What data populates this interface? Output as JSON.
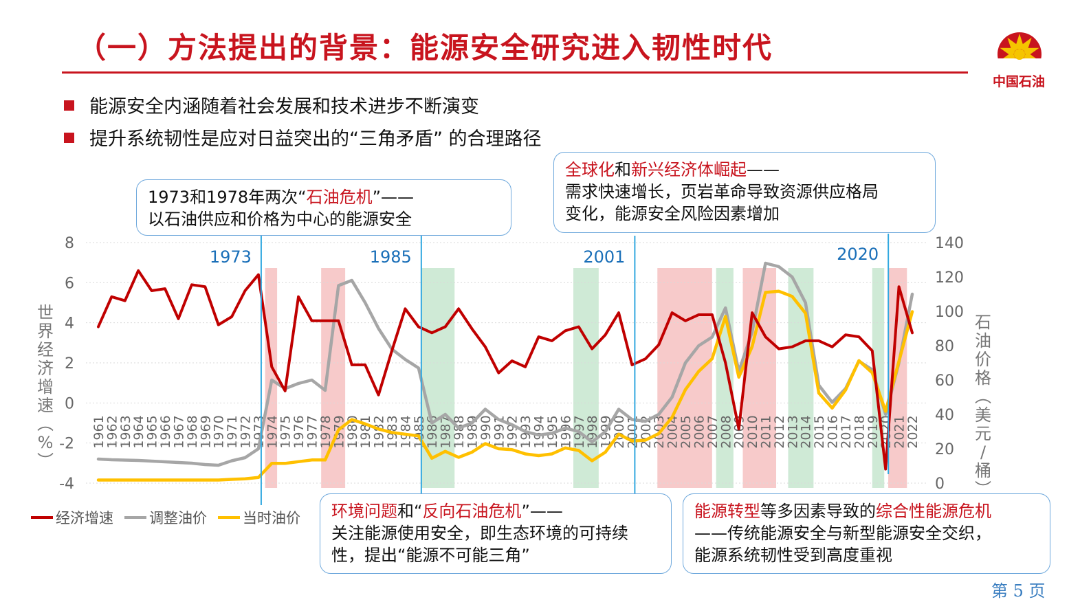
{
  "header": {
    "title": "（一）方法提出的背景：能源安全研究进入韧性时代",
    "logo_text": "中国石油"
  },
  "bullets": [
    "能源安全内涵随着社会发展和技术进步不断演变",
    "提升系统韧性是应对日益突出的“三角矛盾” 的合理路径"
  ],
  "callouts": {
    "c1": {
      "pre": "1973和1978年两次“",
      "hl": "石油危机",
      "post": "”——",
      "line2": "以石油供应和价格为中心的能源安全"
    },
    "c2": {
      "hl1": "全球化",
      "mid": "和",
      "hl2": "新兴经济体崛起",
      "post": "——",
      "line2": "需求快速增长，页岩革命导致资源供应格局",
      "line3": "变化，能源安全风险因素增加"
    },
    "c3": {
      "hl1": "环境问题",
      "mid": "和“",
      "hl2": "反向石油危机",
      "post": "”——",
      "line2": "关注能源使用安全，即生态环境的可持续",
      "line3": "性，提出“能源不可能三角”"
    },
    "c4": {
      "hl1": "能源转型",
      "mid": "等多因素导致的",
      "hl2": "综合性能源危机",
      "line2": "——传统能源安全与新型能源安全交织，",
      "line3": "能源系统韧性受到高度重视"
    }
  },
  "footer": {
    "page": "第 5 页"
  },
  "colors": {
    "accent": "#c8141e",
    "gdp": "#c00000",
    "adjusted": "#a6a6a6",
    "nominal": "#ffc000",
    "marker": "#31a8e0",
    "red_band": "#f4b8b8",
    "green_band": "#bfe3c8",
    "callout_border": "#6ea8dc"
  },
  "chart_data": {
    "type": "line",
    "x": [
      1961,
      1962,
      1963,
      1964,
      1965,
      1966,
      1967,
      1968,
      1969,
      1970,
      1971,
      1972,
      1973,
      1974,
      1975,
      1976,
      1977,
      1978,
      1979,
      1980,
      1981,
      1982,
      1983,
      1984,
      1985,
      1986,
      1987,
      1988,
      1989,
      1990,
      1991,
      1992,
      1993,
      1994,
      1995,
      1996,
      1997,
      1998,
      1999,
      2000,
      2001,
      2002,
      2003,
      2004,
      2005,
      2006,
      2007,
      2008,
      2009,
      2010,
      2011,
      2012,
      2013,
      2014,
      2015,
      2016,
      2017,
      2018,
      2019,
      2020,
      2021,
      2022
    ],
    "x_tick_labels": [
      "1961",
      "1962",
      "1963",
      "1964",
      "1965",
      "1966",
      "1967",
      "1968",
      "1969",
      "1970",
      "1971",
      "1972",
      "1973",
      "1974",
      "1975",
      "1976",
      "1977",
      "1978",
      "1979",
      "1980",
      "1981",
      "1982",
      "1983",
      "1984",
      "1985",
      "1986",
      "1987",
      "1988",
      "1989",
      "1990",
      "1991",
      "1992",
      "1993",
      "1994",
      "1995",
      "1996",
      "1997",
      "1998",
      "1999",
      "2000",
      "2001",
      "2002",
      "2003",
      "2004",
      "2005",
      "2006",
      "2007",
      "2008",
      "2009",
      "2010",
      "2011",
      "2012",
      "2013",
      "2014",
      "2015",
      "2016",
      "2017",
      "2018",
      "2019",
      "2020",
      "2021",
      "2022"
    ],
    "series": [
      {
        "name": "经济增速",
        "axis": "left",
        "values": [
          3.8,
          5.3,
          5.1,
          6.6,
          5.6,
          5.7,
          4.2,
          5.9,
          5.8,
          3.9,
          4.3,
          5.6,
          6.4,
          1.8,
          0.6,
          5.3,
          4.1,
          4.1,
          4.1,
          1.9,
          1.9,
          0.4,
          2.6,
          4.7,
          3.8,
          3.5,
          3.8,
          4.7,
          3.7,
          2.8,
          1.5,
          2.1,
          1.8,
          3.3,
          3.1,
          3.6,
          3.8,
          2.7,
          3.4,
          4.5,
          1.9,
          2.2,
          2.9,
          4.5,
          4.1,
          4.4,
          4.4,
          2.0,
          -1.3,
          4.5,
          3.3,
          2.7,
          2.8,
          3.1,
          3.1,
          2.8,
          3.4,
          3.3,
          2.6,
          -3.3,
          5.8,
          3.5
        ]
      },
      {
        "name": "调整油价",
        "axis": "right",
        "values": [
          14,
          13.6,
          13.4,
          13.2,
          12.8,
          12.4,
          12,
          11.6,
          10.8,
          10.4,
          13,
          14.8,
          20,
          60,
          55,
          58,
          60,
          54,
          115,
          118,
          105,
          90,
          78,
          72,
          67,
          35,
          40,
          32,
          35,
          43,
          37,
          34,
          30,
          28,
          29,
          32,
          30,
          24,
          30,
          43,
          37,
          36,
          40,
          50,
          70,
          80,
          85,
          102,
          65,
          88,
          128,
          126,
          120,
          105,
          57,
          47,
          55,
          71,
          66,
          40,
          70,
          110
        ]
      },
      {
        "name": "当时油价",
        "axis": "right",
        "values": [
          1.8,
          1.8,
          1.8,
          1.8,
          1.8,
          1.8,
          1.8,
          1.8,
          1.8,
          1.8,
          2.2,
          2.5,
          3.3,
          11.5,
          11.5,
          12.5,
          13.5,
          13.5,
          31,
          37,
          34.5,
          31.5,
          29.5,
          28.5,
          27.5,
          14.5,
          18.5,
          15,
          18,
          23,
          20,
          19.5,
          17,
          16,
          17,
          20.5,
          19,
          13,
          18,
          28.5,
          24.5,
          25,
          28.8,
          38.3,
          54.4,
          65.1,
          72.4,
          97,
          61.7,
          79.5,
          111,
          111.7,
          108.7,
          98.9,
          52.4,
          43.7,
          54.2,
          71.3,
          64.2,
          41.8,
          70.9,
          99.8
        ]
      }
    ],
    "left_axis": {
      "min": -4,
      "max": 8,
      "ticks": [
        "8",
        "6",
        "4",
        "2",
        "0",
        "-2",
        "-4"
      ],
      "label": "世界经济增速（%）"
    },
    "right_axis": {
      "min": 0,
      "max": 140,
      "ticks": [
        "140",
        "120",
        "100",
        "80",
        "60",
        "40",
        "20",
        "0"
      ],
      "label": "石油价格（美元/桶）"
    },
    "markers": [
      {
        "label": "1973",
        "year": 1973
      },
      {
        "label": "1985",
        "year": 1985
      },
      {
        "label": "2001",
        "year": 2001
      },
      {
        "label": "2020",
        "year": 2020
      }
    ],
    "bands": [
      {
        "kind": "red",
        "from": 1973.5,
        "to": 1974.4
      },
      {
        "kind": "red",
        "from": 1977.7,
        "to": 1979.5
      },
      {
        "kind": "green",
        "from": 1985.2,
        "to": 1987.7
      },
      {
        "kind": "green",
        "from": 1996.6,
        "to": 1998.5
      },
      {
        "kind": "red",
        "from": 2002.9,
        "to": 2007.0
      },
      {
        "kind": "green",
        "from": 2007.3,
        "to": 2008.6
      },
      {
        "kind": "red",
        "from": 2009.3,
        "to": 2011.8
      },
      {
        "kind": "green",
        "from": 2012.7,
        "to": 2014.6
      },
      {
        "kind": "green",
        "from": 2019.0,
        "to": 2019.9
      },
      {
        "kind": "red",
        "from": 2020.2,
        "to": 2021.6
      }
    ],
    "legend": [
      {
        "name": "经济增速",
        "color": "#c00000"
      },
      {
        "name": "调整油价",
        "color": "#a6a6a6"
      },
      {
        "name": "当时油价",
        "color": "#ffc000"
      }
    ],
    "legend_position": "bottom-left",
    "grid": "horizontal dotted"
  }
}
